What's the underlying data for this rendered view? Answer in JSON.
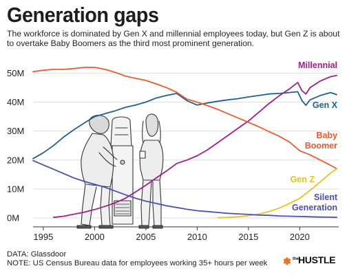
{
  "title": "Generation gaps",
  "subtitle": "The workforce is dominated by Gen X and millennial employees today, but Gen Z is about to overtake Baby Boomers as the third most prominent generation.",
  "source": "DATA: Glassdoor",
  "note": "NOTE: US Census Bureau data for employees working 35+ hours per week",
  "brand": {
    "prefix": "the",
    "name": "HUSTLE",
    "logo_icon": "hubspot-sprocket-icon"
  },
  "colors": {
    "background": "#ffffff",
    "grid": "#dddddd",
    "text": "#222222"
  },
  "chart_data": {
    "type": "line",
    "xlim": [
      1994,
      2023.8
    ],
    "ylim": [
      0,
      52
    ],
    "x_ticks": [
      1995,
      2000,
      2005,
      2010,
      2015,
      2020
    ],
    "y_ticks": [
      0,
      10,
      20,
      30,
      40,
      50
    ],
    "y_tick_labels": [
      "0M",
      "10M",
      "20M",
      "30M",
      "40M",
      "50M"
    ],
    "xlabel": "",
    "ylabel": "",
    "grid": "horizontal",
    "legend": "inline labels at right end of lines",
    "series": [
      {
        "name": "Millennial",
        "color": "#a01c8c",
        "label": [
          "Millennial"
        ],
        "points": [
          [
            1996,
            0.2
          ],
          [
            1997,
            0.6
          ],
          [
            1998,
            1.3
          ],
          [
            1999,
            2.0
          ],
          [
            2000,
            2.9
          ],
          [
            2001,
            4.0
          ],
          [
            2002,
            5.2
          ],
          [
            2003,
            6.8
          ],
          [
            2004,
            9.0
          ],
          [
            2005,
            11.3
          ],
          [
            2006,
            13.8
          ],
          [
            2007,
            16.2
          ],
          [
            2008,
            18.8
          ],
          [
            2009,
            20.0
          ],
          [
            2010,
            21.5
          ],
          [
            2011,
            23.5
          ],
          [
            2012,
            26.0
          ],
          [
            2013,
            28.5
          ],
          [
            2014,
            31.0
          ],
          [
            2015,
            33.5
          ],
          [
            2016,
            36.5
          ],
          [
            2017,
            39.5
          ],
          [
            2018,
            42.2
          ],
          [
            2019,
            44.6
          ],
          [
            2019.8,
            46.8
          ],
          [
            2020.2,
            44.0
          ],
          [
            2020.6,
            42.8
          ],
          [
            2021,
            45.0
          ],
          [
            2022,
            47.3
          ],
          [
            2023,
            48.8
          ],
          [
            2023.6,
            49.2
          ]
        ]
      },
      {
        "name": "Gen X",
        "color": "#1f5f8f",
        "label": [
          "Gen X"
        ],
        "points": [
          [
            1994,
            20.5
          ],
          [
            1995,
            22.5
          ],
          [
            1996,
            25.0
          ],
          [
            1997,
            28.0
          ],
          [
            1998,
            30.5
          ],
          [
            1999,
            32.8
          ],
          [
            2000,
            35.0
          ],
          [
            2001,
            36.0
          ],
          [
            2002,
            37.0
          ],
          [
            2003,
            38.2
          ],
          [
            2004,
            39.0
          ],
          [
            2005,
            40.0
          ],
          [
            2006,
            41.4
          ],
          [
            2007,
            42.3
          ],
          [
            2008,
            43.0
          ],
          [
            2009,
            40.5
          ],
          [
            2010,
            39.0
          ],
          [
            2011,
            39.7
          ],
          [
            2012,
            40.3
          ],
          [
            2013,
            40.8
          ],
          [
            2014,
            41.2
          ],
          [
            2015,
            41.8
          ],
          [
            2016,
            42.3
          ],
          [
            2017,
            42.8
          ],
          [
            2018,
            43.0
          ],
          [
            2019,
            43.3
          ],
          [
            2019.8,
            43.6
          ],
          [
            2020.2,
            40.6
          ],
          [
            2020.6,
            38.9
          ],
          [
            2021,
            40.8
          ],
          [
            2022,
            42.3
          ],
          [
            2023,
            43.3
          ],
          [
            2023.6,
            42.6
          ]
        ]
      },
      {
        "name": "Baby Boomer",
        "color": "#ee5a2d",
        "label": [
          "Baby",
          "Boomer"
        ],
        "points": [
          [
            1994,
            50.5
          ],
          [
            1995,
            51.0
          ],
          [
            1996,
            51.3
          ],
          [
            1997,
            51.3
          ],
          [
            1998,
            51.6
          ],
          [
            1999,
            52.0
          ],
          [
            2000,
            52.0
          ],
          [
            2001,
            51.3
          ],
          [
            2002,
            50.3
          ],
          [
            2003,
            49.0
          ],
          [
            2004,
            48.2
          ],
          [
            2005,
            47.5
          ],
          [
            2006,
            46.3
          ],
          [
            2007,
            45.0
          ],
          [
            2008,
            43.4
          ],
          [
            2009,
            41.0
          ],
          [
            2010,
            40.0
          ],
          [
            2011,
            38.8
          ],
          [
            2012,
            37.5
          ],
          [
            2013,
            36.0
          ],
          [
            2014,
            34.5
          ],
          [
            2015,
            33.0
          ],
          [
            2016,
            31.5
          ],
          [
            2017,
            29.8
          ],
          [
            2018,
            28.2
          ],
          [
            2019,
            26.2
          ],
          [
            2020,
            23.2
          ],
          [
            2021,
            21.8
          ],
          [
            2022,
            20.0
          ],
          [
            2023,
            18.2
          ],
          [
            2023.6,
            17.0
          ]
        ]
      },
      {
        "name": "Gen Z",
        "color": "#e8c11a",
        "label": [
          "Gen Z"
        ],
        "points": [
          [
            2012,
            0.1
          ],
          [
            2013,
            0.2
          ],
          [
            2014,
            0.4
          ],
          [
            2015,
            0.8
          ],
          [
            2016,
            1.3
          ],
          [
            2017,
            2.2
          ],
          [
            2018,
            3.4
          ],
          [
            2019,
            5.0
          ],
          [
            2020,
            6.8
          ],
          [
            2021,
            9.5
          ],
          [
            2022,
            12.5
          ],
          [
            2023,
            15.5
          ],
          [
            2023.6,
            17.0
          ]
        ]
      },
      {
        "name": "Silent Generation",
        "color": "#4a4fb0",
        "label": [
          "Silent",
          "Generation"
        ],
        "points": [
          [
            1994,
            19.8
          ],
          [
            1995,
            18.3
          ],
          [
            1996,
            16.8
          ],
          [
            1997,
            15.3
          ],
          [
            1998,
            13.8
          ],
          [
            1999,
            12.6
          ],
          [
            2000,
            11.6
          ],
          [
            2001,
            10.6
          ],
          [
            2002,
            9.3
          ],
          [
            2003,
            8.0
          ],
          [
            2004,
            6.8
          ],
          [
            2005,
            5.8
          ],
          [
            2006,
            5.0
          ],
          [
            2007,
            4.2
          ],
          [
            2008,
            3.6
          ],
          [
            2009,
            3.0
          ],
          [
            2010,
            2.5
          ],
          [
            2011,
            2.2
          ],
          [
            2012,
            1.9
          ],
          [
            2013,
            1.6
          ],
          [
            2014,
            1.4
          ],
          [
            2015,
            1.2
          ],
          [
            2016,
            1.0
          ],
          [
            2017,
            0.9
          ],
          [
            2018,
            0.7
          ],
          [
            2019,
            0.6
          ],
          [
            2020,
            0.5
          ],
          [
            2021,
            0.4
          ],
          [
            2022,
            0.3
          ],
          [
            2023,
            0.25
          ],
          [
            2023.6,
            0.2
          ]
        ]
      }
    ]
  }
}
